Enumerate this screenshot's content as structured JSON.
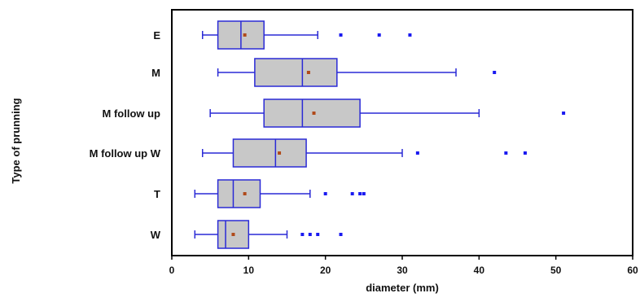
{
  "chart_data": {
    "type": "boxplot",
    "title": "",
    "xlabel": "diameter (mm)",
    "ylabel": "Type of prunning",
    "xlim": [
      0,
      60
    ],
    "xticks": [
      0,
      10,
      20,
      30,
      40,
      50,
      60
    ],
    "grid": false,
    "legend": "none",
    "colors": {
      "box_fill": "#c8c8c8",
      "box_stroke": "#2a2ad6",
      "whisker": "#2a2ad6",
      "outlier": "#1a1af0",
      "mean": "#b04a1a",
      "frame": "#000000"
    },
    "categories": [
      {
        "label": "E",
        "whisker_low": 4,
        "q1": 6,
        "median": 9,
        "q3": 12,
        "whisker_high": 19,
        "mean": 9.5,
        "outliers": [
          22,
          27,
          31
        ]
      },
      {
        "label": "M",
        "whisker_low": 6,
        "q1": 10.8,
        "median": 17,
        "q3": 21.5,
        "whisker_high": 37,
        "mean": 17.8,
        "outliers": [
          42
        ]
      },
      {
        "label": "M follow up",
        "whisker_low": 5,
        "q1": 12,
        "median": 17,
        "q3": 24.5,
        "whisker_high": 40,
        "mean": 18.5,
        "outliers": [
          51
        ]
      },
      {
        "label": "M follow up W",
        "whisker_low": 4,
        "q1": 8,
        "median": 13.5,
        "q3": 17.5,
        "whisker_high": 30,
        "mean": 14,
        "outliers": [
          32,
          43.5,
          46
        ]
      },
      {
        "label": "T",
        "whisker_low": 3,
        "q1": 6,
        "median": 8,
        "q3": 11.5,
        "whisker_high": 18,
        "mean": 9.5,
        "outliers": [
          20,
          23.5,
          24.5,
          25
        ]
      },
      {
        "label": "W",
        "whisker_low": 3,
        "q1": 6,
        "median": 7,
        "q3": 10,
        "whisker_high": 15,
        "mean": 8,
        "outliers": [
          17,
          18,
          19,
          22
        ]
      }
    ]
  }
}
